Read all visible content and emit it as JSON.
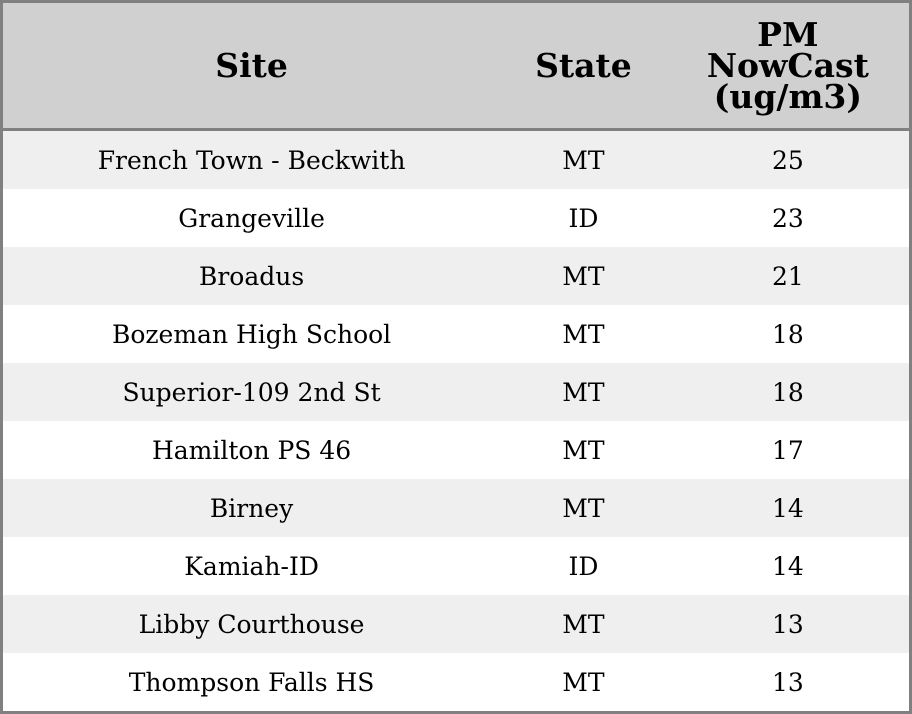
{
  "table": {
    "headers": [
      "Site",
      "State",
      "PM NowCast (ug/m3)"
    ],
    "header_lines": [
      "PM",
      "NowCast",
      "(ug/m3)"
    ],
    "rows": [
      {
        "site": "French Town - Beckwith",
        "state": "MT",
        "value": "25"
      },
      {
        "site": "Grangeville",
        "state": "ID",
        "value": "23"
      },
      {
        "site": "Broadus",
        "state": "MT",
        "value": "21"
      },
      {
        "site": "Bozeman High School",
        "state": "MT",
        "value": "18"
      },
      {
        "site": "Superior-109 2nd St",
        "state": "MT",
        "value": "18"
      },
      {
        "site": "Hamilton PS 46",
        "state": "MT",
        "value": "17"
      },
      {
        "site": "Birney",
        "state": "MT",
        "value": "14"
      },
      {
        "site": "Kamiah-ID",
        "state": "ID",
        "value": "14"
      },
      {
        "site": "Libby Courthouse",
        "state": "MT",
        "value": "13"
      },
      {
        "site": "Thompson Falls HS",
        "state": "MT",
        "value": "13"
      }
    ]
  }
}
